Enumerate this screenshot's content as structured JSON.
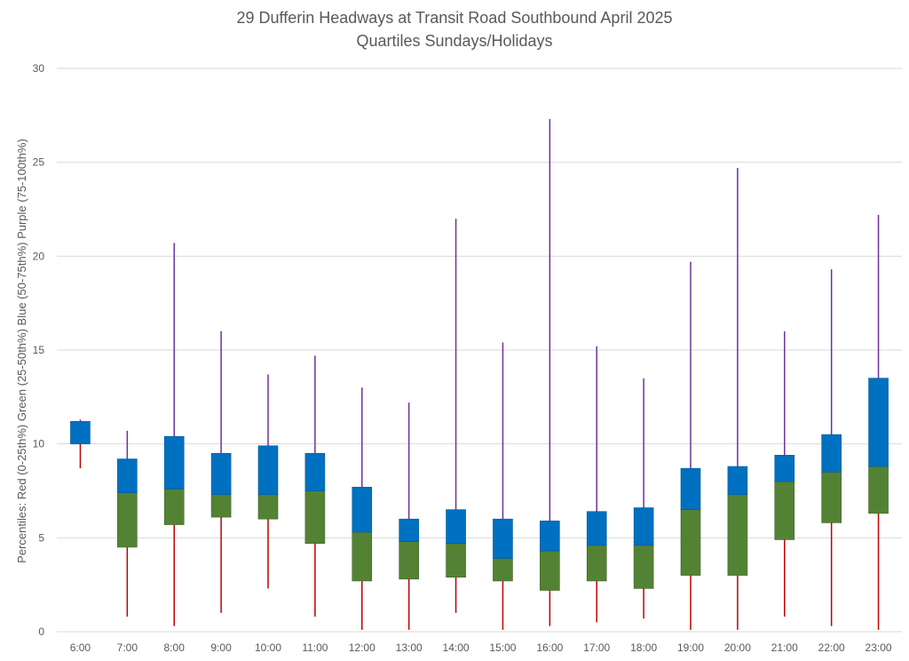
{
  "chart_data": {
    "type": "box",
    "title": "29 Dufferin Headways at Transit Road Southbound April 2025",
    "subtitle": "Quartiles Sundays/Holidays",
    "ylabel": "Percentiles:  Red (0-25th%)  Green (25-50th%)  Blue (50-75th%)  Purple (75-100th%)",
    "xlabel": "",
    "ylim": [
      0,
      30
    ],
    "yticks": [
      "0",
      "5",
      "10",
      "15",
      "20",
      "25",
      "30"
    ],
    "grid": true,
    "colors": {
      "q1": "#c00000",
      "q2": "#548235",
      "q3": "#0070c0",
      "q4": "#7030a0"
    },
    "categories": [
      "6:00",
      "7:00",
      "8:00",
      "9:00",
      "10:00",
      "11:00",
      "12:00",
      "13:00",
      "14:00",
      "15:00",
      "16:00",
      "17:00",
      "18:00",
      "19:00",
      "20:00",
      "21:00",
      "22:00",
      "23:00"
    ],
    "min": [
      8.7,
      0.8,
      0.3,
      1.0,
      2.3,
      0.8,
      0.1,
      0.1,
      1.0,
      0.1,
      0.3,
      0.5,
      0.7,
      0.1,
      0.1,
      0.8,
      0.3,
      0.1
    ],
    "q1": [
      10.0,
      4.5,
      5.7,
      6.1,
      6.0,
      4.7,
      2.7,
      2.8,
      2.9,
      2.7,
      2.2,
      2.7,
      2.3,
      3.0,
      3.0,
      4.9,
      5.8,
      6.3
    ],
    "median": [
      10.0,
      7.4,
      7.6,
      7.3,
      7.3,
      7.5,
      5.3,
      4.8,
      4.7,
      3.9,
      4.3,
      4.6,
      4.6,
      6.5,
      7.3,
      8.0,
      8.5,
      8.8
    ],
    "q3": [
      11.2,
      9.2,
      10.4,
      9.5,
      9.9,
      9.5,
      7.7,
      6.0,
      6.5,
      6.0,
      5.9,
      6.4,
      6.6,
      8.7,
      8.8,
      9.4,
      10.5,
      13.5
    ],
    "max": [
      11.3,
      10.7,
      20.7,
      16.0,
      13.7,
      14.7,
      13.0,
      12.2,
      22.0,
      15.4,
      27.3,
      15.2,
      13.5,
      19.7,
      24.7,
      16.0,
      19.3,
      22.2
    ]
  }
}
